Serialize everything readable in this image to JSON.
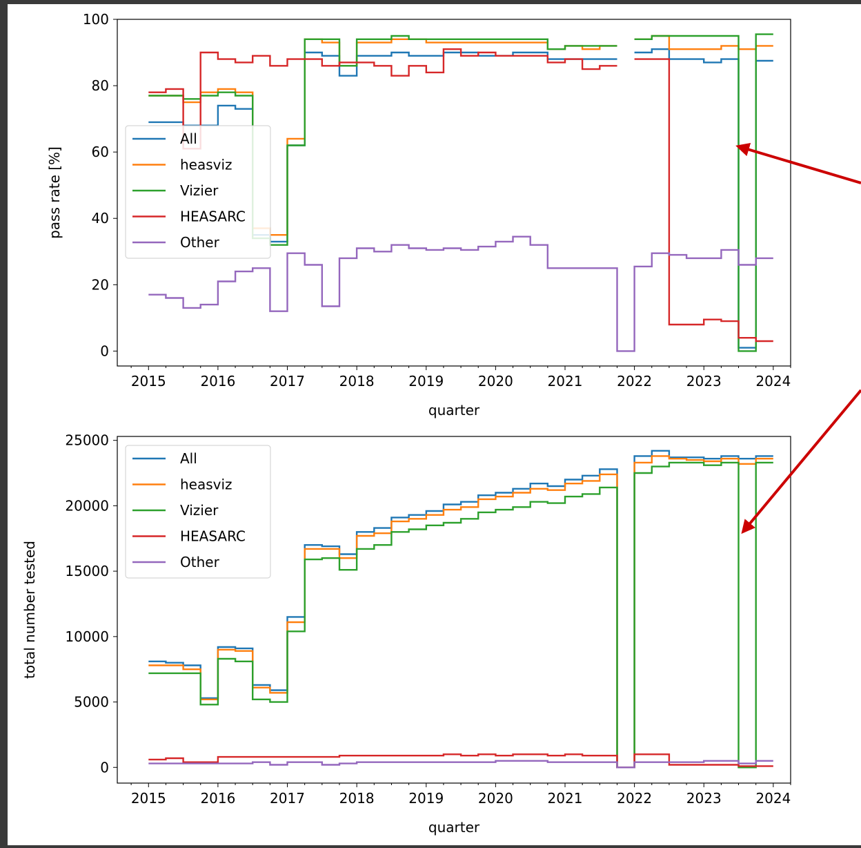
{
  "figure": {
    "background": "#3a3a3a",
    "annotation_color": "#cc0000",
    "series_colors": {
      "All": "#1f77b4",
      "heasviz": "#ff7f0e",
      "Vizier": "#2ca02c",
      "HEASARC": "#d62728",
      "Other": "#9467bd"
    }
  },
  "chart_data": [
    {
      "type": "line",
      "step": true,
      "xlabel": "quarter",
      "ylabel": "pass rate [%]",
      "xlim": [
        2014.55,
        2024.25
      ],
      "ylim": [
        -4.5,
        100
      ],
      "xticks": [
        "2015",
        "2016",
        "2017",
        "2018",
        "2019",
        "2020",
        "2021",
        "2022",
        "2023",
        "2024"
      ],
      "yticks": [
        "0",
        "20",
        "40",
        "60",
        "80",
        "100"
      ],
      "legend_position": "center-left",
      "grid": false,
      "x": [
        2015.0,
        2015.25,
        2015.5,
        2015.75,
        2016.0,
        2016.25,
        2016.5,
        2016.75,
        2017.0,
        2017.25,
        2017.5,
        2017.75,
        2018.0,
        2018.25,
        2018.5,
        2018.75,
        2019.0,
        2019.25,
        2019.5,
        2019.75,
        2020.0,
        2020.25,
        2020.5,
        2020.75,
        2021.0,
        2021.25,
        2021.5,
        2021.75,
        2022.0,
        2022.25,
        2022.5,
        2022.75,
        2023.0,
        2023.25,
        2023.5,
        2023.75
      ],
      "series": [
        {
          "name": "All",
          "values": [
            69,
            69,
            68,
            68,
            74,
            73,
            35,
            33,
            62,
            90,
            89,
            83,
            89,
            89,
            90,
            89,
            89,
            90,
            90,
            89,
            89,
            90,
            90,
            88,
            88,
            88,
            88,
            null,
            90,
            91,
            88,
            88,
            87,
            88,
            1,
            87.5
          ]
        },
        {
          "name": "heasviz",
          "values": [
            77,
            77,
            75,
            78,
            79,
            78,
            37,
            35,
            64,
            94,
            93,
            86,
            93,
            93,
            94,
            94,
            93,
            93,
            93,
            93,
            93,
            93,
            93,
            91,
            92,
            91,
            92,
            null,
            94,
            95,
            91,
            91,
            91,
            92,
            91,
            92
          ]
        },
        {
          "name": "Vizier",
          "values": [
            77,
            77,
            76,
            77,
            78,
            77,
            34,
            32,
            62,
            94,
            94,
            86,
            94,
            94,
            95,
            94,
            94,
            94,
            94,
            94,
            94,
            94,
            94,
            91,
            92,
            92,
            92,
            null,
            94,
            95,
            95,
            95,
            95,
            95,
            0,
            95.5
          ]
        },
        {
          "name": "HEASARC",
          "values": [
            78,
            79,
            61,
            90,
            88,
            87,
            89,
            86,
            88,
            88,
            86,
            87,
            87,
            86,
            83,
            86,
            84,
            91,
            89,
            90,
            89,
            89,
            89,
            87,
            88,
            85,
            86,
            null,
            88,
            88,
            8,
            8,
            9.5,
            9,
            4,
            3
          ]
        },
        {
          "name": "Other",
          "values": [
            17,
            16,
            13,
            14,
            21,
            24,
            25,
            12,
            29.5,
            26,
            13.5,
            28,
            31,
            30,
            32,
            31,
            30.5,
            31,
            30.5,
            31.5,
            33,
            34.5,
            32,
            25,
            25,
            25,
            25,
            0,
            25.5,
            29.5,
            29,
            28,
            28,
            30.5,
            26,
            28
          ]
        }
      ]
    },
    {
      "type": "line",
      "step": true,
      "xlabel": "quarter",
      "ylabel": "total number tested",
      "xlim": [
        2014.55,
        2024.25
      ],
      "ylim": [
        -1200,
        25300
      ],
      "xticks": [
        "2015",
        "2016",
        "2017",
        "2018",
        "2019",
        "2020",
        "2021",
        "2022",
        "2023",
        "2024"
      ],
      "yticks": [
        "0",
        "5000",
        "10000",
        "15000",
        "20000",
        "25000"
      ],
      "legend_position": "top-left",
      "grid": false,
      "x": [
        2015.0,
        2015.25,
        2015.5,
        2015.75,
        2016.0,
        2016.25,
        2016.5,
        2016.75,
        2017.0,
        2017.25,
        2017.5,
        2017.75,
        2018.0,
        2018.25,
        2018.5,
        2018.75,
        2019.0,
        2019.25,
        2019.5,
        2019.75,
        2020.0,
        2020.25,
        2020.5,
        2020.75,
        2021.0,
        2021.25,
        2021.5,
        2021.75,
        2022.0,
        2022.25,
        2022.5,
        2022.75,
        2023.0,
        2023.25,
        2023.5,
        2023.75
      ],
      "series": [
        {
          "name": "All",
          "values": [
            8100,
            8000,
            7800,
            5300,
            9200,
            9100,
            6300,
            5900,
            11500,
            17000,
            16900,
            16300,
            18000,
            18300,
            19100,
            19300,
            19600,
            20100,
            20300,
            20800,
            21000,
            21300,
            21700,
            21500,
            22000,
            22300,
            22800,
            0,
            23800,
            24200,
            23700,
            23700,
            23600,
            23800,
            23600,
            23800
          ]
        },
        {
          "name": "heasviz",
          "values": [
            7800,
            7800,
            7500,
            5200,
            9000,
            8900,
            6100,
            5700,
            11100,
            16700,
            16700,
            16000,
            17700,
            17900,
            18800,
            19000,
            19300,
            19700,
            19900,
            20500,
            20700,
            21000,
            21300,
            21200,
            21700,
            21900,
            22400,
            0,
            23300,
            23800,
            23600,
            23500,
            23400,
            23600,
            23200,
            23600
          ]
        },
        {
          "name": "Vizier",
          "values": [
            7200,
            7200,
            7200,
            4800,
            8300,
            8100,
            5200,
            5000,
            10400,
            15900,
            16000,
            15100,
            16700,
            17000,
            18000,
            18200,
            18500,
            18700,
            19000,
            19500,
            19700,
            19900,
            20300,
            20200,
            20700,
            20900,
            21400,
            0,
            22500,
            23000,
            23300,
            23300,
            23100,
            23300,
            0,
            23300
          ]
        },
        {
          "name": "HEASARC",
          "values": [
            600,
            700,
            400,
            400,
            800,
            800,
            800,
            800,
            800,
            800,
            800,
            900,
            900,
            900,
            900,
            900,
            900,
            1000,
            900,
            1000,
            900,
            1000,
            1000,
            900,
            1000,
            900,
            900,
            0,
            1000,
            1000,
            200,
            200,
            200,
            200,
            100,
            100
          ]
        },
        {
          "name": "Other",
          "values": [
            300,
            300,
            300,
            300,
            300,
            300,
            400,
            200,
            400,
            400,
            200,
            300,
            400,
            400,
            400,
            400,
            400,
            400,
            400,
            400,
            500,
            500,
            500,
            400,
            400,
            400,
            400,
            0,
            400,
            400,
            400,
            400,
            500,
            500,
            300,
            500
          ]
        }
      ]
    }
  ]
}
